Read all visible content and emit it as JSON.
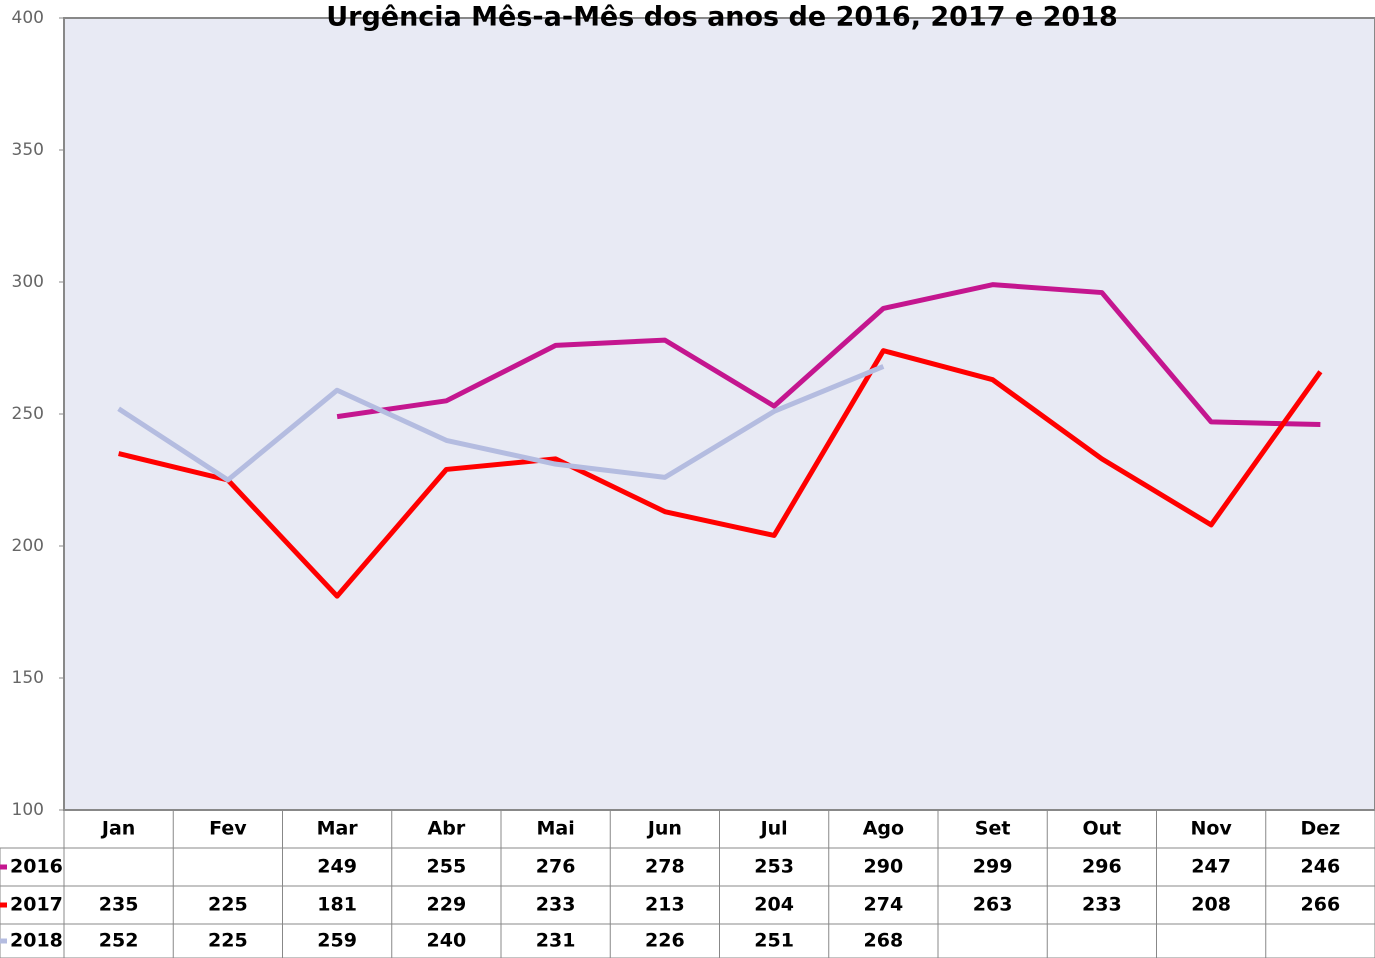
{
  "chart_data": {
    "type": "line",
    "title": "Urgência Mês-a-Mês dos anos de  2016, 2017 e 2018",
    "categories": [
      "Jan",
      "Fev",
      "Mar",
      "Abr",
      "Mai",
      "Jun",
      "Jul",
      "Ago",
      "Set",
      "Out",
      "Nov",
      "Dez"
    ],
    "series": [
      {
        "name": "2016",
        "color": "#c4168f",
        "values": [
          null,
          null,
          249,
          255,
          276,
          278,
          253,
          290,
          299,
          296,
          247,
          246
        ]
      },
      {
        "name": "2017",
        "color": "#ff0000",
        "values": [
          235,
          225,
          181,
          229,
          233,
          213,
          204,
          274,
          263,
          233,
          208,
          266
        ]
      },
      {
        "name": "2018",
        "color": "#b4bce0",
        "values": [
          252,
          225,
          259,
          240,
          231,
          226,
          251,
          268,
          null,
          null,
          null,
          null
        ]
      }
    ],
    "ylim": [
      100,
      400
    ],
    "yticks": [
      100,
      150,
      200,
      250,
      300,
      350,
      400
    ],
    "grid": false
  }
}
